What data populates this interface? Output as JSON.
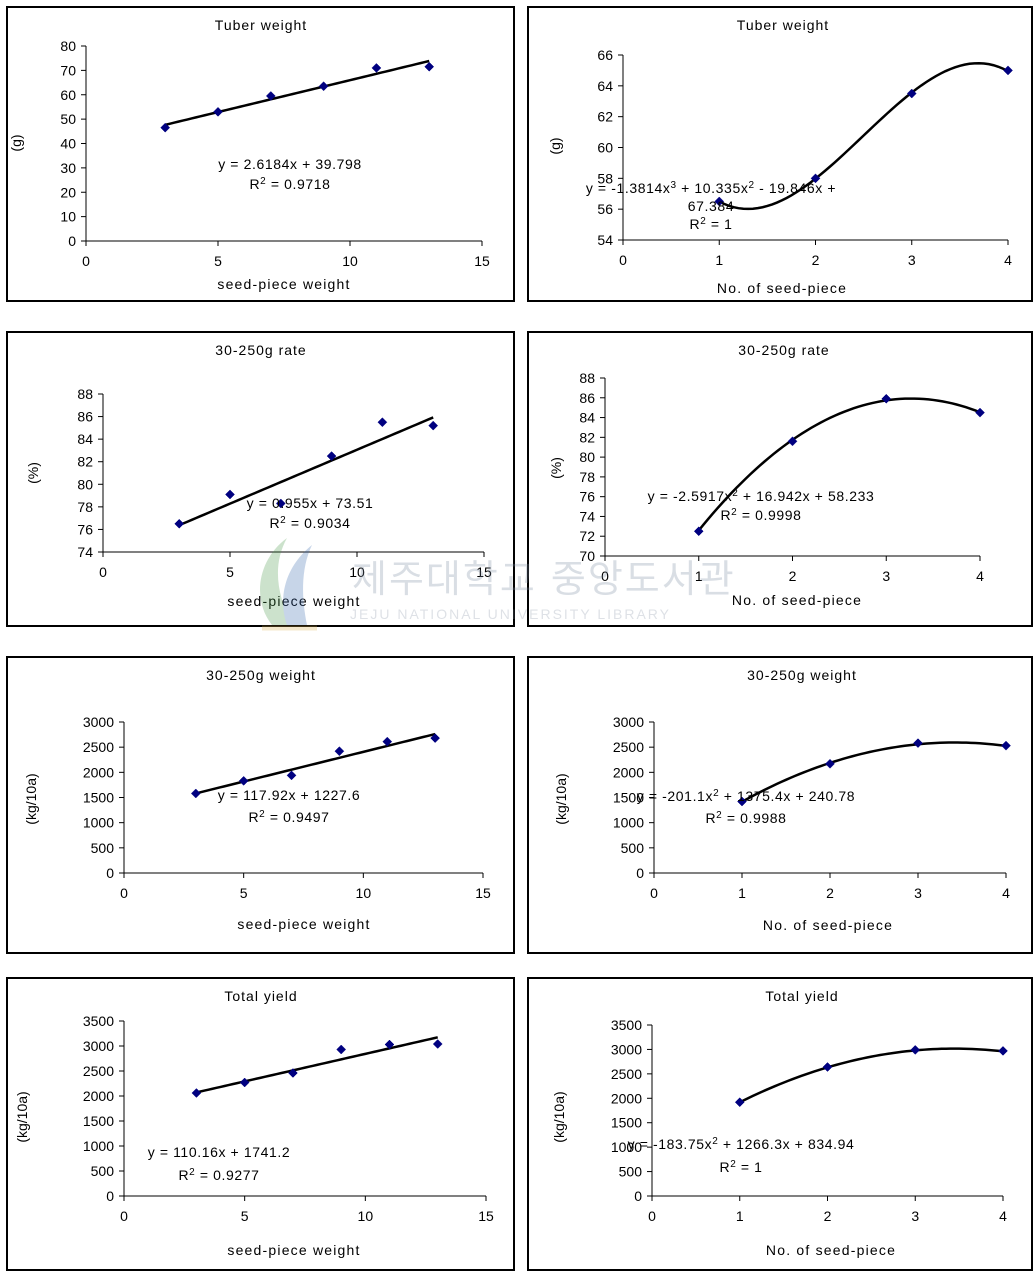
{
  "watermark": {
    "korean": "제주대학교 중앙도서관",
    "english": "JEJU NATIONAL UNIVERSITY LIBRARY"
  },
  "colors": {
    "marker": "#000080",
    "trend": "#000000"
  },
  "chart_data": [
    {
      "type": "scatter",
      "title": "Tuber weight",
      "xlabel": "seed-piece weight",
      "ylabel": "(g)",
      "xlim": [
        0,
        15
      ],
      "ylim": [
        0,
        80
      ],
      "xticks": [
        0,
        5,
        10,
        15
      ],
      "yticks": [
        0,
        10,
        20,
        30,
        40,
        50,
        60,
        70,
        80
      ],
      "x": [
        3,
        5,
        7,
        9,
        11,
        13
      ],
      "y": [
        46.5,
        53,
        59.5,
        63.5,
        71,
        71.5
      ],
      "trendline": {
        "kind": "linear",
        "coef": [
          2.6184,
          39.798
        ]
      },
      "equation_lines": [
        [
          "y = 2.6184x + 39.798"
        ],
        [
          "R",
          "2",
          " = 0.9718"
        ]
      ]
    },
    {
      "type": "scatter",
      "title": "Tuber weight",
      "xlabel": "No. of seed-piece",
      "ylabel": "(g)",
      "xlim": [
        0,
        4
      ],
      "ylim": [
        54,
        66
      ],
      "xticks": [
        0,
        1,
        2,
        3,
        4
      ],
      "yticks": [
        54,
        56,
        58,
        60,
        62,
        64,
        66
      ],
      "x": [
        1,
        2,
        3,
        4
      ],
      "y": [
        56.5,
        58,
        63.5,
        65
      ],
      "trendline": {
        "kind": "cubic",
        "coef": [
          -1.3814,
          10.335,
          -19.846,
          67.384
        ]
      },
      "equation_lines": [
        [
          "y = -1.3814x",
          "3",
          " + 10.335x",
          "2",
          " - 19.846x +"
        ],
        [
          "67.384"
        ],
        [
          "R",
          "2",
          " = 1"
        ]
      ]
    },
    {
      "type": "scatter",
      "title": "30-250g rate",
      "xlabel": "seed-piece weight",
      "ylabel": "(%)",
      "xlim": [
        0,
        15
      ],
      "ylim": [
        74,
        88
      ],
      "xticks": [
        0,
        5,
        10,
        15
      ],
      "yticks": [
        74,
        76,
        78,
        80,
        82,
        84,
        86,
        88
      ],
      "x": [
        3,
        5,
        7,
        9,
        11,
        13
      ],
      "y": [
        76.5,
        79.1,
        78.3,
        82.5,
        85.5,
        85.2
      ],
      "trendline": {
        "kind": "linear",
        "coef": [
          0.955,
          73.51
        ]
      },
      "equation_lines": [
        [
          "y = 0.955x + 73.51"
        ],
        [
          "R",
          "2",
          " = 0.9034"
        ]
      ]
    },
    {
      "type": "scatter",
      "title": "30-250g rate",
      "xlabel": "No. of seed-piece",
      "ylabel": "(%)",
      "xlim": [
        0,
        4
      ],
      "ylim": [
        70,
        88
      ],
      "xticks": [
        0,
        1,
        2,
        3,
        4
      ],
      "yticks": [
        70,
        72,
        74,
        76,
        78,
        80,
        82,
        84,
        86,
        88
      ],
      "x": [
        1,
        2,
        3,
        4
      ],
      "y": [
        72.5,
        81.6,
        85.9,
        84.5
      ],
      "trendline": {
        "kind": "quadratic",
        "coef": [
          -2.5917,
          16.942,
          58.233
        ]
      },
      "equation_lines": [
        [
          "y = -2.5917x",
          "2",
          " + 16.942x + 58.233"
        ],
        [
          "R",
          "2",
          " = 0.9998"
        ]
      ]
    },
    {
      "type": "scatter",
      "title": "30-250g weight",
      "xlabel": "seed-piece weight",
      "ylabel": "(kg/10a)",
      "xlim": [
        0,
        15
      ],
      "ylim": [
        0,
        3000
      ],
      "xticks": [
        0,
        5,
        10,
        15
      ],
      "yticks": [
        0,
        500,
        1000,
        1500,
        2000,
        2500,
        3000
      ],
      "x": [
        3,
        5,
        7,
        9,
        11,
        13
      ],
      "y": [
        1580,
        1830,
        1940,
        2420,
        2610,
        2680
      ],
      "trendline": {
        "kind": "linear",
        "coef": [
          117.92,
          1227.6
        ]
      },
      "equation_lines": [
        [
          "y = 117.92x + 1227.6"
        ],
        [
          "R",
          "2",
          " = 0.9497"
        ]
      ]
    },
    {
      "type": "scatter",
      "title": "30-250g weight",
      "xlabel": "No. of seed-piece",
      "ylabel": "(kg/10a)",
      "xlim": [
        0,
        4
      ],
      "ylim": [
        0,
        3000
      ],
      "xticks": [
        0,
        1,
        2,
        3,
        4
      ],
      "yticks": [
        0,
        500,
        1000,
        1500,
        2000,
        2500,
        3000
      ],
      "x": [
        1,
        2,
        3,
        4
      ],
      "y": [
        1420,
        2170,
        2580,
        2530
      ],
      "trendline": {
        "kind": "quadratic",
        "coef": [
          -201.1,
          1375.4,
          240.78
        ]
      },
      "equation_lines": [
        [
          "y = -201.1x",
          "2",
          " + 1375.4x + 240.78"
        ],
        [
          "R",
          "2",
          " = 0.9988"
        ]
      ]
    },
    {
      "type": "scatter",
      "title": "Total yield",
      "xlabel": "seed-piece weight",
      "ylabel": "(kg/10a)",
      "xlim": [
        0,
        15
      ],
      "ylim": [
        0,
        3500
      ],
      "xticks": [
        0,
        5,
        10,
        15
      ],
      "yticks": [
        0,
        500,
        1000,
        1500,
        2000,
        2500,
        3000,
        3500
      ],
      "x": [
        3,
        5,
        7,
        9,
        11,
        13
      ],
      "y": [
        2060,
        2270,
        2460,
        2930,
        3030,
        3040
      ],
      "trendline": {
        "kind": "linear",
        "coef": [
          110.16,
          1741.2
        ]
      },
      "equation_lines": [
        [
          "y = 110.16x + 1741.2"
        ],
        [
          "R",
          "2",
          " = 0.9277"
        ]
      ]
    },
    {
      "type": "scatter",
      "title": "Total yield",
      "xlabel": "No. of seed-piece",
      "ylabel": "(kg/10a)",
      "xlim": [
        0,
        4
      ],
      "ylim": [
        0,
        3500
      ],
      "xticks": [
        0,
        1,
        2,
        3,
        4
      ],
      "yticks": [
        0,
        500,
        1000,
        1500,
        2000,
        2500,
        3000,
        3500
      ],
      "x": [
        1,
        2,
        3,
        4
      ],
      "y": [
        1920,
        2640,
        2990,
        2970
      ],
      "trendline": {
        "kind": "quadratic",
        "coef": [
          -183.75,
          1266.3,
          834.94
        ]
      },
      "equation_lines": [
        [
          "y = -183.75x",
          "2",
          " + 1266.3x + 834.94"
        ],
        [
          "R",
          "2",
          " = 1"
        ]
      ]
    }
  ]
}
